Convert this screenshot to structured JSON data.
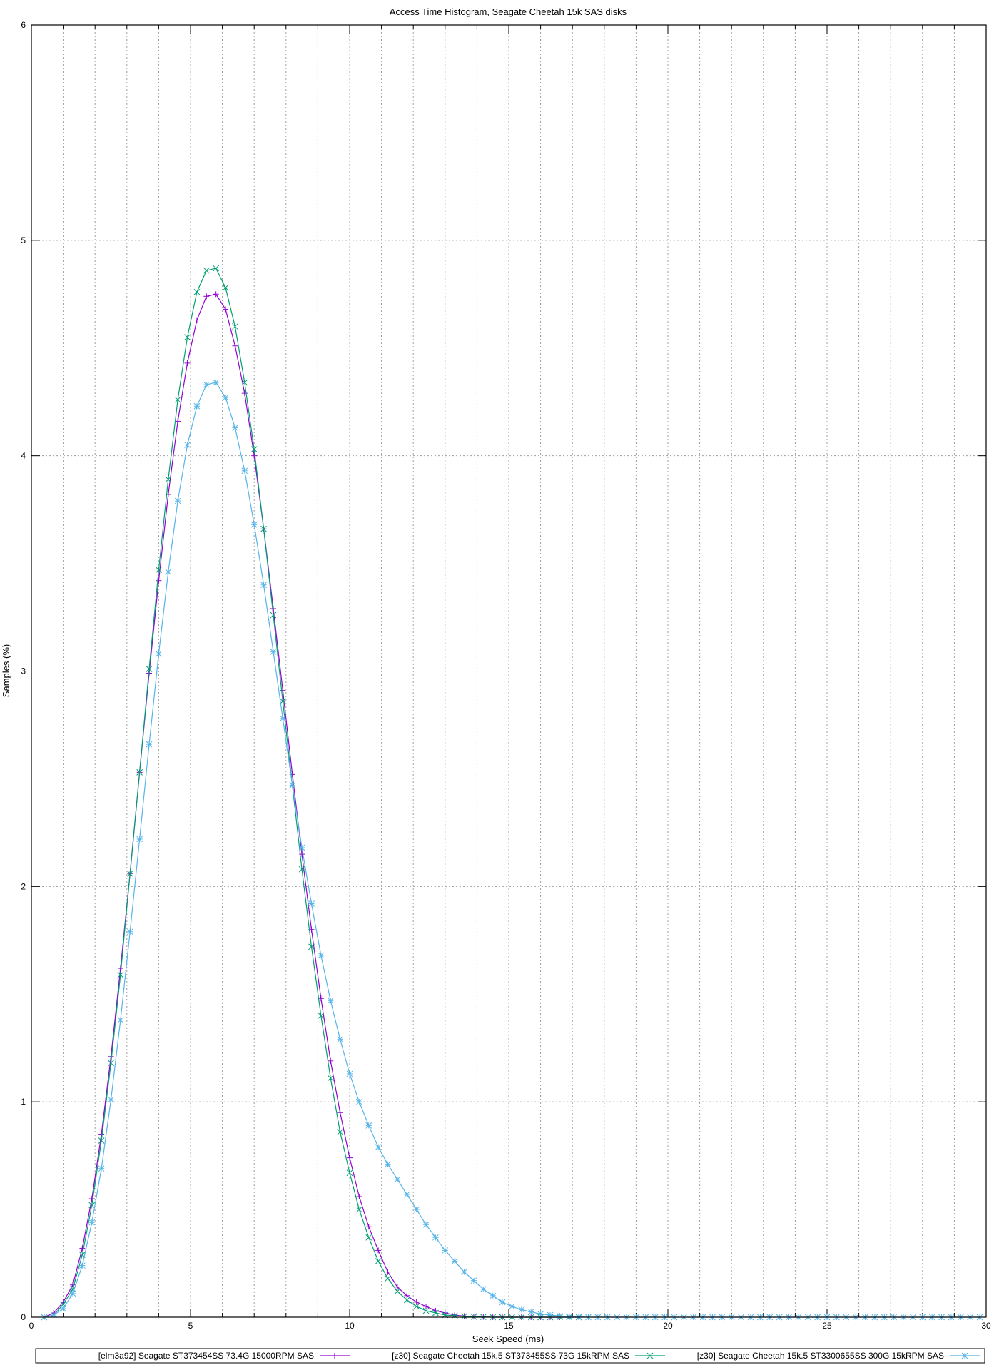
{
  "chart_data": {
    "type": "line",
    "title": "Access Time Histogram, Seagate Cheetah 15k SAS disks",
    "xlabel": "Seek Speed (ms)",
    "ylabel": "Samples (%)",
    "xlim": [
      0,
      30
    ],
    "ylim": [
      0,
      6
    ],
    "xticks": [
      "0",
      "5",
      "10",
      "15",
      "20",
      "25",
      "30"
    ],
    "yticks": [
      "0",
      "1",
      "2",
      "3",
      "4",
      "5",
      "6"
    ],
    "grid": true,
    "legend_placement": "bottom",
    "x_start": 0.4,
    "x_step": 0.3,
    "series": [
      {
        "name": "[elm3a92] Seagate ST373454SS 73.4G 15000RPM SAS",
        "color": "#9400d3",
        "marker": "plus",
        "values": [
          0,
          0.02,
          0.07,
          0.15,
          0.32,
          0.55,
          0.85,
          1.21,
          1.62,
          2.06,
          2.53,
          2.99,
          3.42,
          3.82,
          4.16,
          4.43,
          4.63,
          4.74,
          4.75,
          4.68,
          4.51,
          4.29,
          4.0,
          3.66,
          3.29,
          2.91,
          2.52,
          2.15,
          1.8,
          1.48,
          1.19,
          0.95,
          0.74,
          0.56,
          0.42,
          0.31,
          0.21,
          0.14,
          0.1,
          0.07,
          0.05,
          0.03,
          0.02,
          0.01,
          0.005,
          0.003,
          0.001,
          0,
          0,
          0,
          0,
          0,
          0,
          0,
          0,
          0,
          0
        ]
      },
      {
        "name": "[z30] Seagate Cheetah 15k.5 ST373455SS 73G 15kRPM SAS",
        "color": "#009e73",
        "marker": "cross",
        "values": [
          0,
          0.01,
          0.06,
          0.13,
          0.29,
          0.52,
          0.82,
          1.18,
          1.59,
          2.06,
          2.53,
          3.01,
          3.47,
          3.89,
          4.26,
          4.55,
          4.76,
          4.86,
          4.87,
          4.78,
          4.6,
          4.34,
          4.03,
          3.66,
          3.26,
          2.86,
          2.47,
          2.08,
          1.72,
          1.4,
          1.11,
          0.86,
          0.67,
          0.5,
          0.37,
          0.26,
          0.18,
          0.12,
          0.08,
          0.05,
          0.03,
          0.02,
          0.01,
          0.007,
          0.004,
          0.002,
          0.001,
          0,
          0,
          0,
          0,
          0,
          0,
          0,
          0,
          0,
          0
        ]
      },
      {
        "name": "[z30] Seagate Cheetah 15k.5 ST3300655SS 300G 15kRPM SAS",
        "color": "#56b4e9",
        "marker": "star",
        "values": [
          0,
          0.01,
          0.04,
          0.11,
          0.24,
          0.44,
          0.69,
          1.01,
          1.38,
          1.79,
          2.22,
          2.66,
          3.08,
          3.46,
          3.79,
          4.05,
          4.23,
          4.33,
          4.34,
          4.27,
          4.13,
          3.93,
          3.68,
          3.4,
          3.09,
          2.78,
          2.47,
          2.18,
          1.92,
          1.68,
          1.47,
          1.29,
          1.13,
          1.0,
          0.89,
          0.79,
          0.71,
          0.64,
          0.57,
          0.5,
          0.43,
          0.37,
          0.31,
          0.26,
          0.21,
          0.17,
          0.13,
          0.1,
          0.07,
          0.05,
          0.035,
          0.025,
          0.015,
          0.01,
          0.006,
          0.003,
          0.002,
          0,
          0,
          0,
          0,
          0,
          0,
          0,
          0,
          0,
          0,
          0,
          0,
          0,
          0,
          0,
          0,
          0,
          0,
          0,
          0,
          0,
          0,
          0,
          0,
          0,
          0,
          0,
          0,
          0,
          0,
          0,
          0,
          0,
          0,
          0,
          0,
          0,
          0,
          0,
          0,
          0,
          0
        ]
      }
    ]
  }
}
